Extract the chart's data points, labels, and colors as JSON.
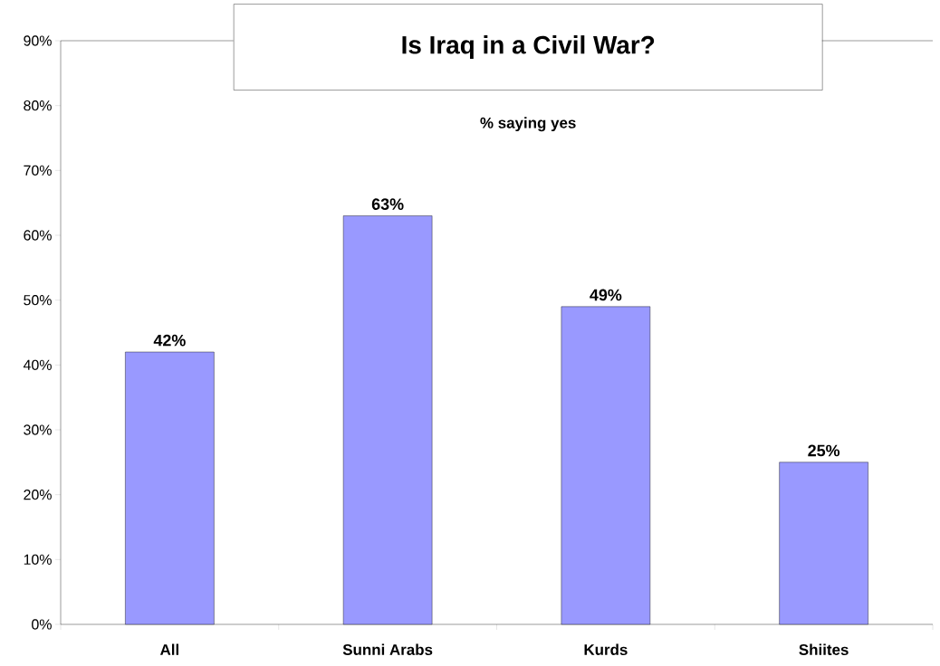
{
  "chart_data": {
    "type": "bar",
    "title": "Is Iraq in a Civil War?",
    "categories": [
      "All",
      "Sunni Arabs",
      "Kurds",
      "Shiites"
    ],
    "values": [
      42,
      63,
      49,
      25
    ],
    "value_labels": [
      "42%",
      "63%",
      "49%",
      "25%"
    ],
    "color": "#9999ff",
    "ylim": [
      0,
      90
    ],
    "yticks": [
      {
        "value": 0,
        "label": "0%"
      },
      {
        "value": 10,
        "label": "10%"
      },
      {
        "value": 20,
        "label": "20%"
      },
      {
        "value": 30,
        "label": "30%"
      },
      {
        "value": 40,
        "label": "40%"
      },
      {
        "value": 50,
        "label": "50%"
      },
      {
        "value": 60,
        "label": "60%"
      },
      {
        "value": 70,
        "label": "70%"
      },
      {
        "value": 80,
        "label": "80%"
      },
      {
        "value": 90,
        "label": "90%"
      }
    ],
    "annotations": [
      "% saying yes"
    ],
    "grid": false
  }
}
